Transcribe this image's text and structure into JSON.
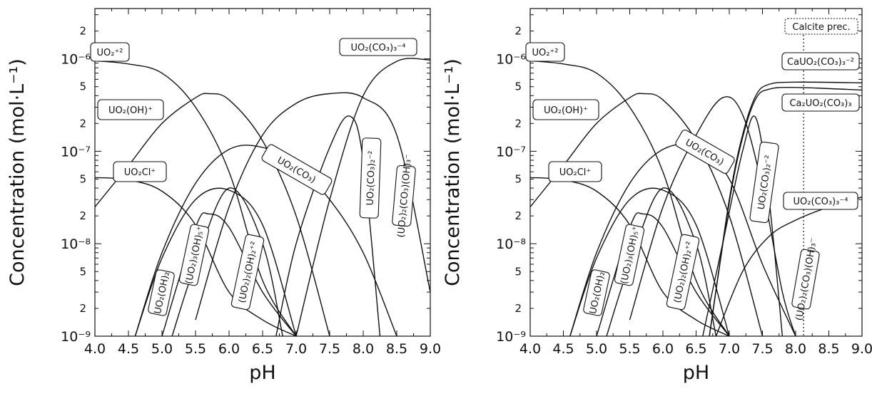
{
  "chart_data": [
    {
      "type": "line",
      "xlabel": "pH",
      "ylabel": "Concentration (mol·L⁻¹)",
      "xlim": [
        4.0,
        9.0
      ],
      "ylim": [
        1e-09,
        3.5e-06
      ],
      "yscale": "log",
      "x_ticks": [
        "4.0",
        "4.5",
        "5.0",
        "5.5",
        "6.0",
        "6.5",
        "7.0",
        "7.5",
        "8.0",
        "8.5",
        "9.0"
      ],
      "y_major_ticks": [
        {
          "value": 1e-09,
          "label": "10⁻⁹"
        },
        {
          "value": 1e-08,
          "label": "10⁻⁸"
        },
        {
          "value": 1e-07,
          "label": "10⁻⁷"
        },
        {
          "value": 1e-06,
          "label": "10⁻⁶"
        }
      ],
      "y_minor_ticks": [
        {
          "value": 2e-09,
          "label": "2"
        },
        {
          "value": 5e-09,
          "label": "5"
        },
        {
          "value": 2e-08,
          "label": "2"
        },
        {
          "value": 5e-08,
          "label": "5"
        },
        {
          "value": 2e-07,
          "label": "2"
        },
        {
          "value": 5e-07,
          "label": "5"
        },
        {
          "value": 2e-06,
          "label": "2"
        }
      ],
      "series": [
        {
          "name": "UO₂⁺²",
          "x": [
            4.0,
            4.5,
            5.0,
            5.5,
            6.0,
            6.5,
            7.0
          ],
          "y": [
            9.5e-07,
            8.8e-07,
            7e-07,
            3e-07,
            6e-08,
            4e-09,
            1e-09
          ]
        },
        {
          "name": "UO₂(OH)⁺",
          "x": [
            4.0,
            4.5,
            5.0,
            5.5,
            5.7,
            6.0,
            6.5,
            7.0,
            7.5
          ],
          "y": [
            2.5e-08,
            7e-08,
            2e-07,
            3.8e-07,
            4.2e-07,
            3.6e-07,
            1.3e-07,
            2e-08,
            1e-09
          ]
        },
        {
          "name": "UO₂Cl⁺",
          "x": [
            4.0,
            4.5,
            5.0,
            5.5,
            6.0,
            6.5,
            7.0
          ],
          "y": [
            5.2e-08,
            4.9e-08,
            3.7e-08,
            1.6e-08,
            3e-09,
            1.5e-09,
            1e-09
          ]
        },
        {
          "name": "UO₂(OH)₂",
          "x": [
            4.6,
            5.0,
            5.5,
            6.0,
            6.5,
            7.0
          ],
          "y": [
            1e-09,
            7e-09,
            3e-08,
            3.8e-08,
            1.6e-08,
            1e-09
          ]
        },
        {
          "name": "(UO₂)₃(OH)₅⁺",
          "x": [
            5.15,
            5.5,
            6.0,
            6.5,
            6.8
          ],
          "y": [
            1e-09,
            6e-09,
            4e-08,
            1e-08,
            1e-09
          ]
        },
        {
          "name": "(UO₂)₂(OH)₂⁺²",
          "x": [
            5.0,
            5.5,
            5.7,
            6.0,
            6.5,
            7.0
          ],
          "y": [
            1e-09,
            1.5e-08,
            2.1e-08,
            1.5e-08,
            3e-09,
            1e-09
          ]
        },
        {
          "name": "UO₂(CO₃)",
          "x": [
            4.6,
            5.0,
            5.5,
            6.0,
            6.5,
            7.0,
            7.5,
            8.0,
            8.5
          ],
          "y": [
            1e-09,
            8e-09,
            4.5e-08,
            1.05e-07,
            1.1e-07,
            7e-08,
            3e-08,
            8e-09,
            1e-09
          ]
        },
        {
          "name": "UO₂(CO₃)₂⁻²",
          "x": [
            5.5,
            6.0,
            6.5,
            7.0,
            7.5,
            8.0,
            8.5,
            9.0
          ],
          "y": [
            1.5e-09,
            2.5e-08,
            1.5e-07,
            3.3e-07,
            4.2e-07,
            3.8e-07,
            1.5e-07,
            3e-09
          ]
        },
        {
          "name": "(UO₂)₂(CO₃)(OH)₃⁻",
          "x": [
            6.7,
            7.0,
            7.5,
            7.8,
            8.0,
            8.25
          ],
          "y": [
            1e-09,
            1e-08,
            1.1e-07,
            2.4e-07,
            8e-08,
            1e-09
          ]
        },
        {
          "name": "UO₂(CO₃)₃⁻⁴",
          "x": [
            7.0,
            7.5,
            8.0,
            8.5,
            9.0
          ],
          "y": [
            1e-09,
            3e-08,
            4e-07,
            9.4e-07,
            9.7e-07
          ]
        }
      ]
    },
    {
      "type": "line",
      "xlabel": "pH",
      "ylabel": "Concentration (mol·L⁻¹)",
      "xlim": [
        4.0,
        9.0
      ],
      "ylim": [
        1e-09,
        3.5e-06
      ],
      "yscale": "log",
      "x_ticks": [
        "4.0",
        "4.5",
        "5.0",
        "5.5",
        "6.0",
        "6.5",
        "7.0",
        "7.5",
        "8.0",
        "8.5",
        "9.0"
      ],
      "y_major_ticks": [
        {
          "value": 1e-09,
          "label": "10⁻⁹"
        },
        {
          "value": 1e-08,
          "label": "10⁻⁸"
        },
        {
          "value": 1e-07,
          "label": "10⁻⁷"
        },
        {
          "value": 1e-06,
          "label": "10⁻⁶"
        }
      ],
      "y_minor_ticks": [
        {
          "value": 2e-09,
          "label": "2"
        },
        {
          "value": 5e-09,
          "label": "5"
        },
        {
          "value": 2e-08,
          "label": "2"
        },
        {
          "value": 5e-08,
          "label": "5"
        },
        {
          "value": 2e-07,
          "label": "2"
        },
        {
          "value": 5e-07,
          "label": "5"
        },
        {
          "value": 2e-06,
          "label": "2"
        }
      ],
      "annotation": {
        "label": "Calcite prec.",
        "x": 8.12
      },
      "series": [
        {
          "name": "UO₂⁺²",
          "x": [
            4.0,
            4.5,
            5.0,
            5.5,
            6.0,
            6.5,
            7.0
          ],
          "y": [
            9.5e-07,
            8.8e-07,
            7e-07,
            3e-07,
            6e-08,
            4e-09,
            1e-09
          ]
        },
        {
          "name": "UO₂(OH)⁺",
          "x": [
            4.0,
            4.5,
            5.0,
            5.5,
            5.7,
            6.0,
            6.5,
            7.0,
            7.5
          ],
          "y": [
            2.5e-08,
            7e-08,
            2e-07,
            3.8e-07,
            4.2e-07,
            3.6e-07,
            1.3e-07,
            2e-08,
            1e-09
          ]
        },
        {
          "name": "UO₂Cl⁺",
          "x": [
            4.0,
            4.5,
            5.0,
            5.5,
            6.0,
            6.5,
            7.0
          ],
          "y": [
            5.2e-08,
            4.9e-08,
            3.7e-08,
            1.6e-08,
            3e-09,
            1.5e-09,
            1e-09
          ]
        },
        {
          "name": "UO₂(OH)₂",
          "x": [
            4.6,
            5.0,
            5.5,
            6.0,
            6.5,
            7.0
          ],
          "y": [
            1e-09,
            7e-09,
            3e-08,
            3.8e-08,
            1.6e-08,
            1e-09
          ]
        },
        {
          "name": "(UO₂)₃(OH)₅⁺",
          "x": [
            5.15,
            5.5,
            6.0,
            6.5,
            6.8
          ],
          "y": [
            1e-09,
            6e-09,
            4e-08,
            1e-08,
            1e-09
          ]
        },
        {
          "name": "(UO₂)₂(OH)₂⁺²",
          "x": [
            5.0,
            5.5,
            5.7,
            6.0,
            6.5,
            7.0
          ],
          "y": [
            1e-09,
            1.5e-08,
            2.1e-08,
            1.5e-08,
            3e-09,
            1e-09
          ]
        },
        {
          "name": "UO₂(CO₃)",
          "x": [
            4.6,
            5.0,
            5.5,
            6.0,
            6.5,
            7.0,
            7.5,
            8.0
          ],
          "y": [
            1e-09,
            8e-09,
            4.5e-08,
            1.05e-07,
            1.1e-07,
            5e-08,
            6e-09,
            1e-09
          ]
        },
        {
          "name": "UO₂(CO₃)₂⁻²",
          "x": [
            5.5,
            6.0,
            6.5,
            6.9,
            7.2,
            7.5,
            7.8,
            8.0
          ],
          "y": [
            1.5e-09,
            2.5e-08,
            1.5e-07,
            3.8e-07,
            2.5e-07,
            4e-08,
            3e-09,
            1e-09
          ]
        },
        {
          "name": "(UO₂)₂(CO₃)(OH)₃⁻",
          "x": [
            6.6,
            6.9,
            7.2,
            7.4,
            7.6,
            7.8
          ],
          "y": [
            1e-09,
            1e-08,
            1e-07,
            2.3e-07,
            3e-08,
            1e-09
          ]
        },
        {
          "name": "UO₂(CO₃)₃⁻⁴",
          "x": [
            6.8,
            7.2,
            7.6,
            8.0,
            8.5,
            9.0
          ],
          "y": [
            1e-09,
            5e-09,
            1.2e-08,
            1.8e-08,
            2.5e-08,
            3.2e-08
          ]
        },
        {
          "name": "CaUO₂(CO₃)₃⁻²",
          "x": [
            6.7,
            7.0,
            7.2,
            7.4,
            7.6,
            8.0,
            9.0
          ],
          "y": [
            1e-09,
            3e-08,
            1.5e-07,
            4e-07,
            5.3e-07,
            5.6e-07,
            5.5e-07
          ]
        },
        {
          "name": "Ca₂UO₂(CO₃)₃",
          "x": [
            6.7,
            7.0,
            7.2,
            7.4,
            7.6,
            8.0,
            9.0
          ],
          "y": [
            1e-09,
            2.8e-08,
            1.4e-07,
            3.7e-07,
            4.7e-07,
            4.9e-07,
            4.6e-07
          ]
        }
      ]
    }
  ]
}
